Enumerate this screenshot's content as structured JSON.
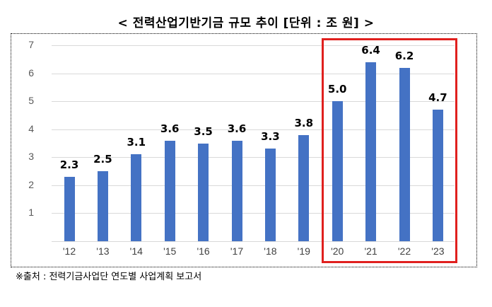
{
  "title": "< 전력산업기반기금 규모 추이 [단위 : 조 원] >",
  "source": "※출처 : 전력기금사업단 연도별 사업계획 보고서",
  "colors": {
    "bar": "#4472C4",
    "highlight_box": "#E0201E",
    "grid": "#D9D9D9"
  },
  "chart_data": {
    "type": "bar",
    "title": "전력산업기반기금 규모 추이 [단위 : 조 원]",
    "xlabel": "",
    "ylabel": "",
    "unit": "조 원",
    "categories": [
      "'12",
      "'13",
      "'14",
      "'15",
      "'16",
      "'17",
      "'18",
      "'19",
      "'20",
      "'21",
      "'22",
      "'23"
    ],
    "values": [
      2.3,
      2.5,
      3.1,
      3.6,
      3.5,
      3.6,
      3.3,
      3.8,
      5.0,
      6.4,
      6.2,
      4.7
    ],
    "value_labels": [
      "2.3",
      "2.5",
      "3.1",
      "3.6",
      "3.5",
      "3.6",
      "3.3",
      "3.8",
      "5.0",
      "6.4",
      "6.2",
      "4.7"
    ],
    "yticks": [
      "1",
      "2",
      "3",
      "4",
      "5",
      "6",
      "7"
    ],
    "ylim": [
      0,
      7
    ],
    "grid": true,
    "legend": null,
    "annotations": [
      {
        "type": "highlight-box",
        "categories": [
          "'20",
          "'21",
          "'22",
          "'23"
        ],
        "color": "#E0201E"
      }
    ]
  }
}
